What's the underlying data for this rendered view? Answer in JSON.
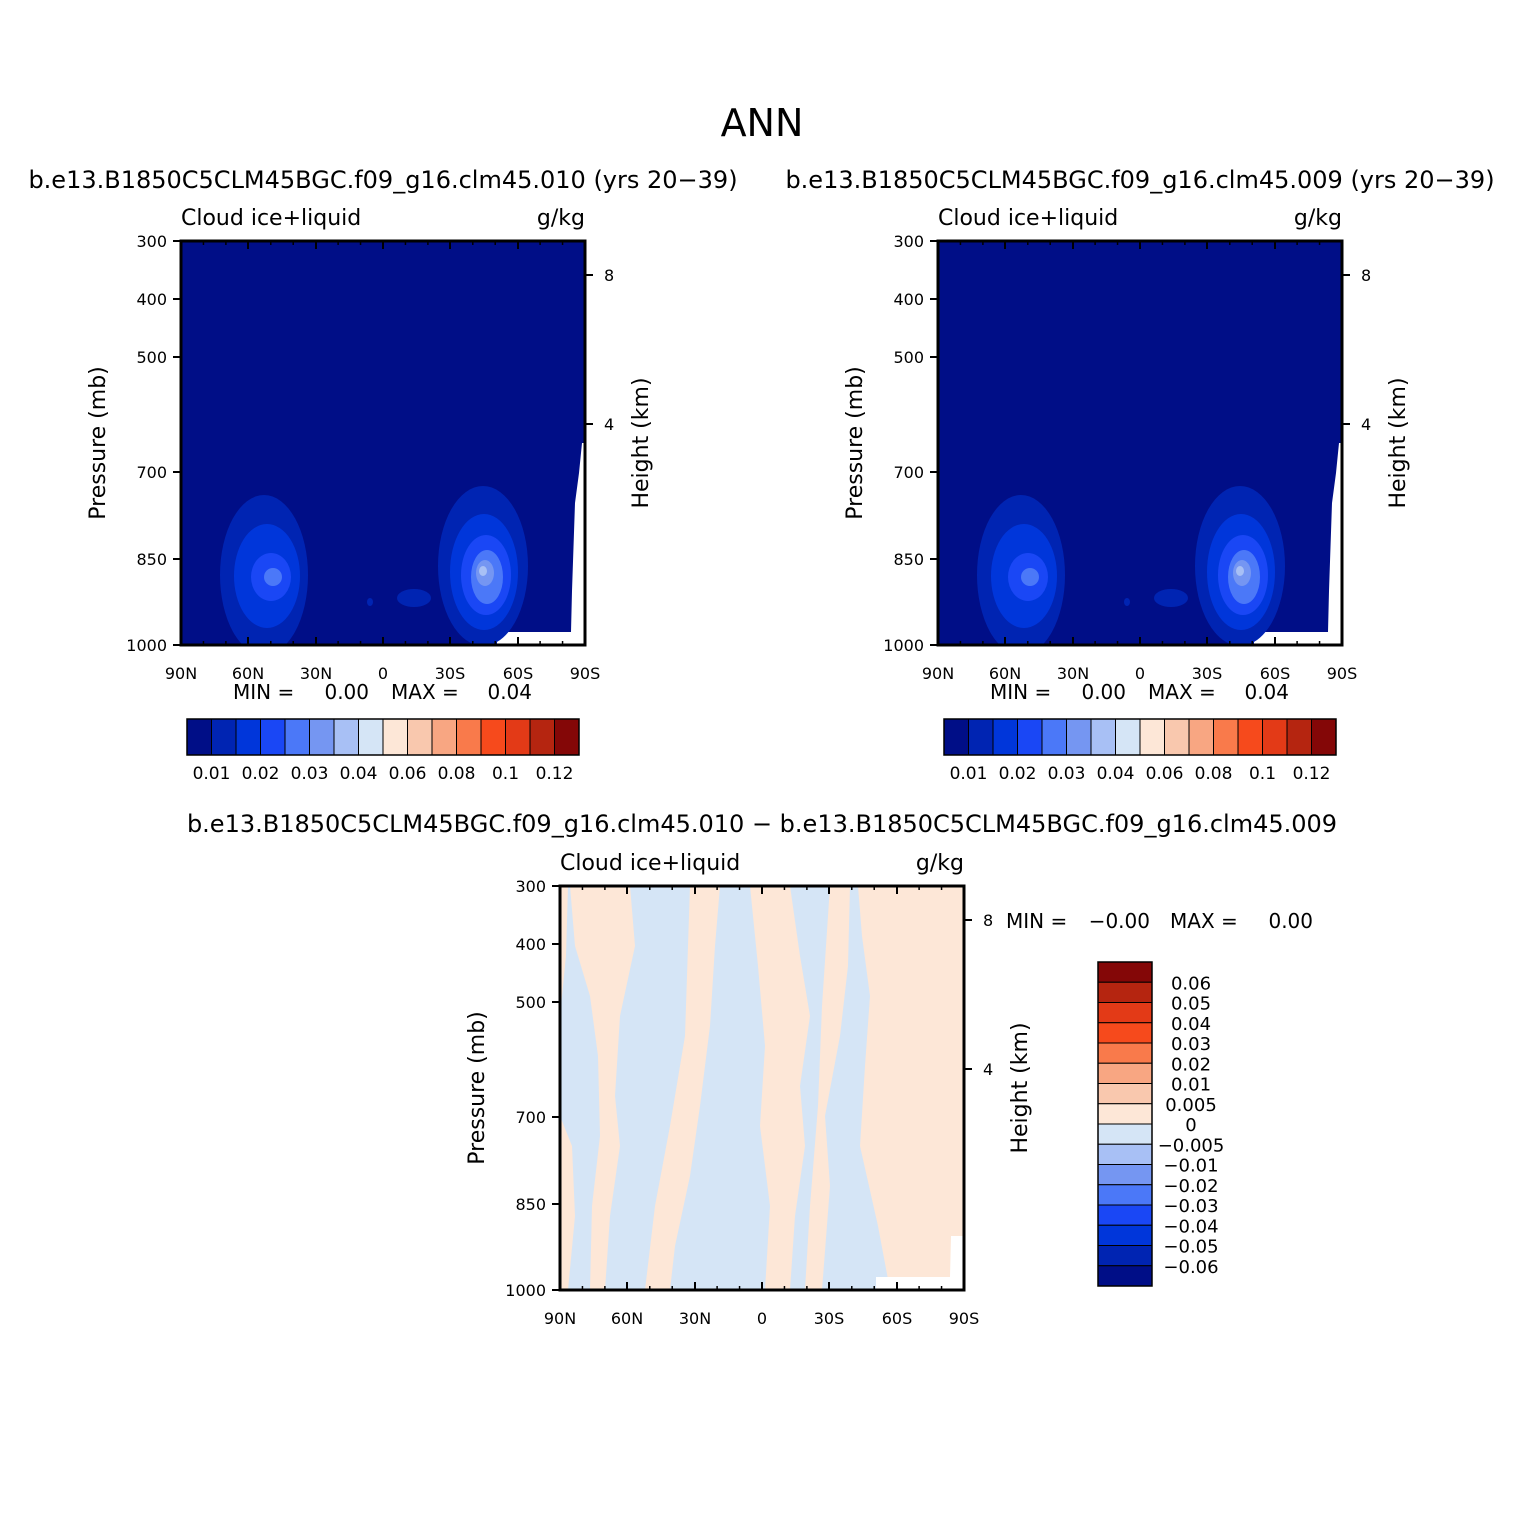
{
  "figure": {
    "title": "ANN"
  },
  "palettes": {
    "abs": [
      "#000e87",
      "#0024b2",
      "#0036da",
      "#1a47f5",
      "#4b78f8",
      "#7596f2",
      "#a8c0f5",
      "#d5e5f6",
      "#fde7d7",
      "#f9c8ae",
      "#f8a682",
      "#f97a4b",
      "#f64a1c",
      "#e33a17",
      "#b52510",
      "#840707"
    ],
    "diff": [
      "#000e87",
      "#0024b2",
      "#0036da",
      "#1a47f5",
      "#4b78f8",
      "#7596f2",
      "#a8c0f5",
      "#d5e5f6",
      "#fde7d7",
      "#f9c8ae",
      "#f8a682",
      "#f97a4b",
      "#f64a1c",
      "#e33a17",
      "#b52510",
      "#840707"
    ]
  },
  "chart_data": [
    {
      "type": "heatmap",
      "title": "b.e13.B1850C5CLM45BGC.f09_g16.clm45.010 (yrs 20−39)",
      "subtitle_left": "Cloud ice+liquid",
      "subtitle_right": "g/kg",
      "xlabel": "",
      "ylabel": "Pressure (mb)",
      "y2label": "Height (km)",
      "x_ticks": [
        "90N",
        "60N",
        "30N",
        "0",
        "30S",
        "60S",
        "90S"
      ],
      "y_ticks": [
        "300",
        "400",
        "500",
        "700",
        "850",
        "1000"
      ],
      "y2_ticks": [
        "8",
        "4"
      ],
      "min_label": "MIN =",
      "min_value": "0.00",
      "max_label": "MAX =",
      "max_value": "0.04",
      "colorbar_labels": [
        "0.01",
        "0.02",
        "0.03",
        "0.04",
        "0.06",
        "0.08",
        "0.1",
        "0.12"
      ]
    },
    {
      "type": "heatmap",
      "title": "b.e13.B1850C5CLM45BGC.f09_g16.clm45.009 (yrs 20−39)",
      "subtitle_left": "Cloud ice+liquid",
      "subtitle_right": "g/kg",
      "xlabel": "",
      "ylabel": "Pressure (mb)",
      "y2label": "Height (km)",
      "x_ticks": [
        "90N",
        "60N",
        "30N",
        "0",
        "30S",
        "60S",
        "90S"
      ],
      "y_ticks": [
        "300",
        "400",
        "500",
        "700",
        "850",
        "1000"
      ],
      "y2_ticks": [
        "8",
        "4"
      ],
      "min_label": "MIN =",
      "min_value": "0.00",
      "max_label": "MAX =",
      "max_value": "0.04",
      "colorbar_labels": [
        "0.01",
        "0.02",
        "0.03",
        "0.04",
        "0.06",
        "0.08",
        "0.1",
        "0.12"
      ]
    },
    {
      "type": "heatmap",
      "title": "b.e13.B1850C5CLM45BGC.f09_g16.clm45.010 − b.e13.B1850C5CLM45BGC.f09_g16.clm45.009",
      "subtitle_left": "Cloud ice+liquid",
      "subtitle_right": "g/kg",
      "xlabel": "",
      "ylabel": "Pressure (mb)",
      "y2label": "Height (km)",
      "x_ticks": [
        "90N",
        "60N",
        "30N",
        "0",
        "30S",
        "60S",
        "90S"
      ],
      "y_ticks": [
        "300",
        "400",
        "500",
        "700",
        "850",
        "1000"
      ],
      "y2_ticks": [
        "8",
        "4"
      ],
      "min_label": "MIN =",
      "min_value": "−0.00",
      "max_label": "MAX =",
      "max_value": "0.00",
      "colorbar_labels": [
        "0.06",
        "0.05",
        "0.04",
        "0.03",
        "0.02",
        "0.01",
        "0.005",
        "0",
        "−0.005",
        "−0.01",
        "−0.02",
        "−0.03",
        "−0.04",
        "−0.05",
        "−0.06"
      ]
    }
  ]
}
